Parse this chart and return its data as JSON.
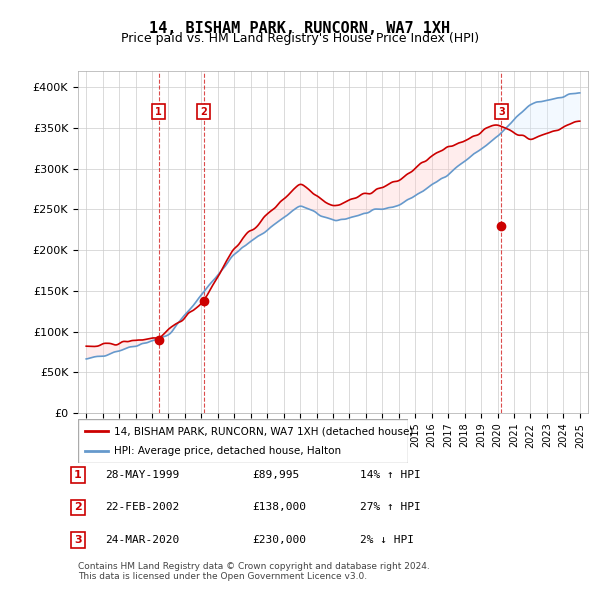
{
  "title": "14, BISHAM PARK, RUNCORN, WA7 1XH",
  "subtitle": "Price paid vs. HM Land Registry's House Price Index (HPI)",
  "ylabel": "",
  "ylim": [
    0,
    420000
  ],
  "yticks": [
    0,
    50000,
    100000,
    150000,
    200000,
    250000,
    300000,
    350000,
    400000
  ],
  "ytick_labels": [
    "£0",
    "£50K",
    "£100K",
    "£150K",
    "£200K",
    "£250K",
    "£300K",
    "£350K",
    "£400K"
  ],
  "xlim_start": 1994.5,
  "xlim_end": 2025.5,
  "transactions": [
    {
      "date_num": 1999.41,
      "price": 89995,
      "label": "1"
    },
    {
      "date_num": 2002.14,
      "price": 138000,
      "label": "2"
    },
    {
      "date_num": 2020.23,
      "price": 230000,
      "label": "3"
    }
  ],
  "table_rows": [
    {
      "num": "1",
      "date": "28-MAY-1999",
      "price": "£89,995",
      "hpi": "14% ↑ HPI"
    },
    {
      "num": "2",
      "date": "22-FEB-2002",
      "price": "£138,000",
      "hpi": "27% ↑ HPI"
    },
    {
      "num": "3",
      "date": "24-MAR-2020",
      "price": "£230,000",
      "hpi": "2% ↓ HPI"
    }
  ],
  "legend_line1": "14, BISHAM PARK, RUNCORN, WA7 1XH (detached house)",
  "legend_line2": "HPI: Average price, detached house, Halton",
  "footer": "Contains HM Land Registry data © Crown copyright and database right 2024.\nThis data is licensed under the Open Government Licence v3.0.",
  "line_red": "#cc0000",
  "line_blue": "#6699cc",
  "shade_red": "#ffcccc",
  "shade_blue": "#ddeeff",
  "vline_color": "#cc0000",
  "box_color": "#cc0000",
  "grid_color": "#cccccc",
  "bg_color": "#ffffff"
}
